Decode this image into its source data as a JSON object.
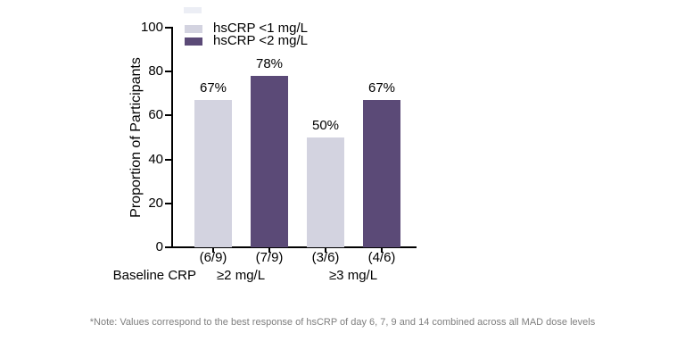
{
  "baseline_label": "Baseline CRP",
  "footnote": "*Note: Values correspond to the best response of hsCRP of day 6, 7, 9 and 14 combined across all MAD dose levels",
  "colors": {
    "series_light": "#d3d3e0",
    "series_dark": "#5b4a77",
    "axis": "#000000",
    "footnote_text": "#7f7f7f",
    "background": "#ffffff"
  },
  "chart_data": {
    "type": "bar",
    "title": "",
    "xlabel": "",
    "ylabel": "Proportion of Participants",
    "ylim": [
      0,
      100
    ],
    "yticks": [
      0,
      20,
      40,
      60,
      80,
      100
    ],
    "grid": false,
    "legend_position": "top-left-inside",
    "series": [
      {
        "name": "hsCRP <1 mg/L",
        "color": "#d3d3e0"
      },
      {
        "name": "hsCRP <2 mg/L",
        "color": "#5b4a77"
      }
    ],
    "groups": [
      {
        "label": "≥2 mg/L",
        "bars": [
          {
            "series": "hsCRP <1 mg/L",
            "value": 67,
            "value_label": "67%",
            "count_label": "(6/9)"
          },
          {
            "series": "hsCRP <2 mg/L",
            "value": 78,
            "value_label": "78%",
            "count_label": "(7/9)"
          }
        ]
      },
      {
        "label": "≥3 mg/L",
        "bars": [
          {
            "series": "hsCRP <1 mg/L",
            "value": 50,
            "value_label": "50%",
            "count_label": "(3/6)"
          },
          {
            "series": "hsCRP <2 mg/L",
            "value": 67,
            "value_label": "67%",
            "count_label": "(4/6)"
          }
        ]
      }
    ]
  }
}
